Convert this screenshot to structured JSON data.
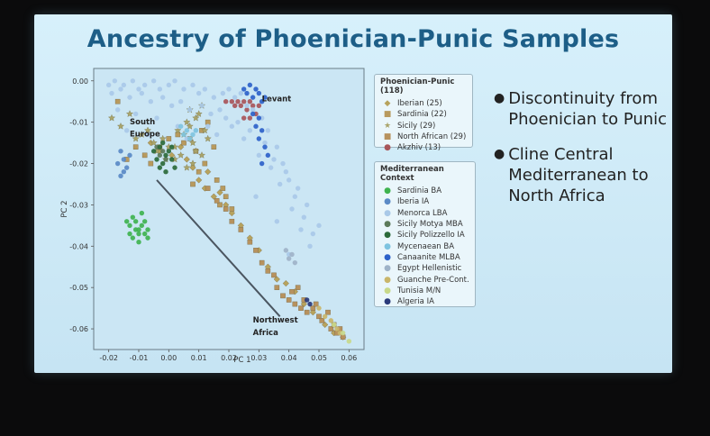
{
  "slide": {
    "title": "Ancestry of Phoenician-Punic Samples",
    "bullets": [
      "Discontinuity from Phoenician to Punic",
      "Cline Central Mediterranean to North Africa"
    ]
  },
  "chart_data": {
    "type": "scatter",
    "xlabel": "PC 1",
    "ylabel": "PC 2",
    "xlim": [
      -0.025,
      0.065
    ],
    "ylim": [
      -0.065,
      0.003
    ],
    "xticks": [
      -0.02,
      -0.01,
      0.0,
      0.01,
      0.02,
      0.03,
      0.04,
      0.05,
      0.06
    ],
    "yticks": [
      0.0,
      -0.01,
      -0.02,
      -0.03,
      -0.04,
      -0.05,
      -0.06
    ],
    "xtick_labels": [
      "-0.02",
      "-0.01",
      "0.00",
      "0.01",
      "0.02",
      "0.03",
      "0.04",
      "0.05",
      "0.06"
    ],
    "ytick_labels": [
      "0.00",
      "-0.01",
      "-0.02",
      "-0.03",
      "-0.04",
      "-0.05",
      "-0.06"
    ],
    "region_labels": [
      {
        "text": "Levant",
        "x": 0.031,
        "y": -0.005
      },
      {
        "text": "South",
        "x": -0.013,
        "y": -0.0105
      },
      {
        "text": "Europe",
        "x": -0.013,
        "y": -0.0135
      },
      {
        "text": "Northwest",
        "x": 0.028,
        "y": -0.0585
      },
      {
        "text": "Africa",
        "x": 0.028,
        "y": -0.0615
      }
    ],
    "cline_line": {
      "x": [
        -0.004,
        0.037
      ],
      "y": [
        -0.024,
        -0.057
      ]
    },
    "legend_groups": [
      {
        "title": "Phoenician-Punic (118)",
        "entries": [
          {
            "label": "Iberian (25)",
            "marker": "◆",
            "color": "#b7a35d"
          },
          {
            "label": "Sardinia (22)",
            "marker": "■",
            "color": "#b89a5e"
          },
          {
            "label": "Sicily (29)",
            "marker": "★",
            "color": "#a9a46a"
          },
          {
            "label": "North African (29)",
            "marker": "■",
            "color": "#b7925e"
          },
          {
            "label": "Akzhiv (13)",
            "marker": "●",
            "color": "#a8565a"
          }
        ]
      },
      {
        "title": "Mediterranean Context",
        "entries": [
          {
            "label": "Sardinia BA",
            "marker": "●",
            "color": "#3fb34f"
          },
          {
            "label": "Iberia IA",
            "marker": "●",
            "color": "#5a8ac6"
          },
          {
            "label": "Menorca LBA",
            "marker": "●",
            "color": "#a9c9e8"
          },
          {
            "label": "Sicily Motya MBA",
            "marker": "●",
            "color": "#5c7a5a"
          },
          {
            "label": "Sicily Polizzello IA",
            "marker": "●",
            "color": "#2b6a3a"
          },
          {
            "label": "Mycenaean BA",
            "marker": "●",
            "color": "#7fc4e0"
          },
          {
            "label": "Canaanite MLBA",
            "marker": "●",
            "color": "#2e62c9"
          },
          {
            "label": "Egypt Hellenistic",
            "marker": "●",
            "color": "#9fb3c8"
          },
          {
            "label": "Guanche Pre-Cont.",
            "marker": "●",
            "color": "#c9b66a"
          },
          {
            "label": "Tunisia M/N",
            "marker": "●",
            "color": "#c8d98a"
          },
          {
            "label": "Algeria IA",
            "marker": "●",
            "color": "#2a3a7a"
          }
        ]
      }
    ],
    "series": [
      {
        "name": "Iberian (25)",
        "marker": "diamond",
        "color": "#b7a35d",
        "x": [
          -0.006,
          -0.003,
          0.001,
          0.004,
          0.006,
          0.008,
          0.01,
          0.012,
          0.013,
          0.015,
          0.017,
          0.019,
          0.021,
          0.024,
          0.027,
          0.03,
          0.033,
          0.036,
          0.039,
          0.042,
          0.045,
          0.048,
          0.052,
          0.055,
          0.058
        ],
        "y": [
          -0.015,
          -0.017,
          -0.018,
          -0.016,
          -0.019,
          -0.021,
          -0.024,
          -0.026,
          -0.022,
          -0.028,
          -0.027,
          -0.03,
          -0.032,
          -0.035,
          -0.038,
          -0.041,
          -0.045,
          -0.048,
          -0.049,
          -0.051,
          -0.054,
          -0.056,
          -0.059,
          -0.061,
          -0.062
        ]
      },
      {
        "name": "Sardinia (22)",
        "marker": "square",
        "color": "#b89a5e",
        "x": [
          -0.017,
          -0.014,
          -0.011,
          -0.008,
          -0.006,
          -0.003,
          0.0,
          0.003,
          0.005,
          0.007,
          0.009,
          0.011,
          0.013,
          0.015,
          0.016,
          0.018,
          0.019,
          0.021,
          0.01,
          0.008,
          0.012,
          0.017
        ],
        "y": [
          -0.005,
          -0.019,
          -0.016,
          -0.018,
          -0.02,
          -0.016,
          -0.014,
          -0.013,
          -0.015,
          -0.014,
          -0.017,
          -0.012,
          -0.01,
          -0.016,
          -0.024,
          -0.026,
          -0.028,
          -0.031,
          -0.022,
          -0.025,
          -0.02,
          -0.03
        ]
      },
      {
        "name": "Sicily (29)",
        "marker": "star",
        "color": "#a9a46a",
        "x": [
          -0.019,
          -0.016,
          -0.013,
          -0.011,
          -0.009,
          -0.007,
          -0.005,
          -0.004,
          -0.002,
          0.0,
          0.002,
          0.003,
          0.005,
          0.006,
          0.007,
          0.008,
          0.009,
          0.01,
          0.011,
          0.012,
          0.013,
          0.008,
          0.006,
          0.004,
          0.002,
          -0.001,
          0.009,
          0.011,
          0.007
        ],
        "y": [
          -0.009,
          -0.011,
          -0.008,
          -0.014,
          -0.013,
          -0.012,
          -0.015,
          -0.017,
          -0.014,
          -0.016,
          -0.019,
          -0.012,
          -0.013,
          -0.01,
          -0.011,
          -0.015,
          -0.017,
          -0.008,
          -0.006,
          -0.012,
          -0.014,
          -0.02,
          -0.021,
          -0.018,
          -0.016,
          -0.019,
          -0.009,
          -0.018,
          -0.007
        ]
      },
      {
        "name": "North African (29)",
        "marker": "square",
        "color": "#b7925e",
        "x": [
          0.013,
          0.016,
          0.019,
          0.021,
          0.024,
          0.027,
          0.029,
          0.031,
          0.033,
          0.035,
          0.036,
          0.038,
          0.04,
          0.041,
          0.042,
          0.044,
          0.045,
          0.046,
          0.048,
          0.05,
          0.051,
          0.053,
          0.054,
          0.055,
          0.056,
          0.057,
          0.058,
          0.043,
          0.049
        ],
        "y": [
          -0.026,
          -0.029,
          -0.031,
          -0.034,
          -0.036,
          -0.039,
          -0.041,
          -0.044,
          -0.046,
          -0.047,
          -0.05,
          -0.052,
          -0.053,
          -0.051,
          -0.054,
          -0.055,
          -0.053,
          -0.056,
          -0.055,
          -0.057,
          -0.058,
          -0.056,
          -0.06,
          -0.059,
          -0.061,
          -0.06,
          -0.062,
          -0.05,
          -0.054
        ]
      },
      {
        "name": "Akzhiv (13)",
        "marker": "circle",
        "color": "#a8565a",
        "x": [
          0.019,
          0.021,
          0.022,
          0.023,
          0.024,
          0.025,
          0.026,
          0.027,
          0.028,
          0.029,
          0.03,
          0.025,
          0.027
        ],
        "y": [
          -0.005,
          -0.005,
          -0.006,
          -0.005,
          -0.006,
          -0.005,
          -0.007,
          -0.005,
          -0.006,
          -0.008,
          -0.006,
          -0.009,
          -0.009
        ]
      },
      {
        "name": "Sardinia BA",
        "marker": "circle",
        "color": "#3fb34f",
        "x": [
          -0.014,
          -0.013,
          -0.012,
          -0.011,
          -0.01,
          -0.009,
          -0.008,
          -0.007,
          -0.012,
          -0.01,
          -0.008,
          -0.011,
          -0.009,
          -0.013,
          -0.007,
          -0.01
        ],
        "y": [
          -0.034,
          -0.035,
          -0.033,
          -0.036,
          -0.037,
          -0.035,
          -0.034,
          -0.036,
          -0.038,
          -0.039,
          -0.037,
          -0.034,
          -0.032,
          -0.037,
          -0.038,
          -0.036
        ]
      },
      {
        "name": "Iberia IA",
        "marker": "circle",
        "color": "#5a8ac6",
        "x": [
          -0.016,
          -0.015,
          -0.014,
          -0.017,
          -0.015,
          -0.013,
          -0.016
        ],
        "y": [
          -0.017,
          -0.019,
          -0.021,
          -0.02,
          -0.022,
          -0.018,
          -0.023
        ]
      },
      {
        "name": "Menorca LBA",
        "marker": "circle",
        "color": "#a9c9e8",
        "x": [
          -0.02,
          -0.018,
          -0.015,
          -0.012,
          -0.01,
          -0.008,
          -0.005,
          -0.003,
          0.0,
          0.002,
          0.005,
          0.008,
          0.01,
          0.012,
          0.015,
          0.018,
          0.02,
          0.022,
          0.024,
          0.026,
          0.028,
          0.031,
          0.033,
          0.036,
          0.038,
          0.04,
          0.042,
          0.045,
          0.048,
          -0.019,
          -0.016,
          -0.013,
          -0.009,
          -0.006,
          -0.002,
          0.001,
          0.004,
          0.007,
          0.011,
          0.014,
          0.017,
          0.019,
          0.023,
          0.027,
          0.032,
          0.035,
          0.039,
          0.043,
          0.046,
          0.05,
          0.037,
          0.041,
          0.044,
          0.047,
          0.034,
          0.03,
          0.025,
          0.021,
          -0.017,
          -0.011,
          -0.004,
          0.003,
          0.009,
          0.016,
          -0.014,
          -0.007,
          0.006,
          0.013,
          0.029,
          0.036,
          0.04
        ],
        "y": [
          -0.001,
          0.0,
          -0.001,
          0.0,
          -0.002,
          -0.001,
          0.0,
          -0.002,
          -0.001,
          0.0,
          -0.002,
          -0.001,
          -0.003,
          -0.002,
          -0.004,
          -0.003,
          -0.002,
          -0.004,
          -0.003,
          -0.006,
          -0.007,
          -0.009,
          -0.012,
          -0.016,
          -0.02,
          -0.024,
          -0.028,
          -0.033,
          -0.037,
          -0.003,
          -0.002,
          -0.004,
          -0.003,
          -0.005,
          -0.004,
          -0.006,
          -0.005,
          -0.007,
          -0.006,
          -0.008,
          -0.007,
          -0.009,
          -0.01,
          -0.012,
          -0.015,
          -0.019,
          -0.022,
          -0.026,
          -0.03,
          -0.035,
          -0.025,
          -0.031,
          -0.036,
          -0.04,
          -0.021,
          -0.018,
          -0.014,
          -0.011,
          -0.007,
          -0.008,
          -0.009,
          -0.011,
          -0.012,
          -0.013,
          -0.012,
          -0.013,
          -0.014,
          -0.011,
          -0.028,
          -0.034,
          -0.042
        ]
      },
      {
        "name": "Sicily Motya MBA",
        "marker": "circle",
        "color": "#5c7a5a",
        "x": [
          -0.004,
          -0.003,
          -0.002,
          -0.001
        ],
        "y": [
          -0.016,
          -0.018,
          -0.017,
          -0.019
        ]
      },
      {
        "name": "Sicily Polizzello IA",
        "marker": "circle",
        "color": "#2b6a3a",
        "x": [
          -0.005,
          -0.004,
          -0.003,
          -0.002,
          -0.001,
          0.0,
          0.001,
          0.002,
          -0.003,
          -0.001,
          0.001,
          -0.002
        ],
        "y": [
          -0.017,
          -0.019,
          -0.016,
          -0.02,
          -0.018,
          -0.017,
          -0.019,
          -0.021,
          -0.021,
          -0.022,
          -0.016,
          -0.015
        ]
      },
      {
        "name": "Mycenaean BA",
        "marker": "circle",
        "color": "#7fc4e0",
        "x": [
          0.004,
          0.005,
          0.006,
          0.007,
          0.008,
          0.009
        ],
        "y": [
          -0.011,
          -0.013,
          -0.012,
          -0.014,
          -0.013,
          -0.012
        ]
      },
      {
        "name": "Canaanite MLBA",
        "marker": "circle",
        "color": "#2e62c9",
        "x": [
          0.025,
          0.026,
          0.027,
          0.028,
          0.029,
          0.03,
          0.031,
          0.032,
          0.028,
          0.03,
          0.029,
          0.031,
          0.03,
          0.032,
          0.033,
          0.031
        ],
        "y": [
          -0.002,
          -0.003,
          -0.001,
          -0.004,
          -0.002,
          -0.003,
          -0.005,
          -0.004,
          -0.008,
          -0.009,
          -0.011,
          -0.012,
          -0.014,
          -0.016,
          -0.018,
          -0.02
        ]
      },
      {
        "name": "Egypt Hellenistic",
        "marker": "circle",
        "color": "#9fb3c8",
        "x": [
          0.039,
          0.04,
          0.041,
          0.042
        ],
        "y": [
          -0.041,
          -0.043,
          -0.042,
          -0.044
        ]
      },
      {
        "name": "Guanche Pre-Cont.",
        "marker": "circle",
        "color": "#c9b66a",
        "x": [
          0.05,
          0.052,
          0.054,
          0.056,
          0.057
        ],
        "y": [
          -0.055,
          -0.057,
          -0.058,
          -0.06,
          -0.061
        ]
      },
      {
        "name": "Tunisia M/N",
        "marker": "circle",
        "color": "#c8d98a",
        "x": [
          0.055,
          0.058,
          0.06
        ],
        "y": [
          -0.059,
          -0.061,
          -0.063
        ]
      },
      {
        "name": "Algeria IA",
        "marker": "circle",
        "color": "#2a3a7a",
        "x": [
          0.046,
          0.047
        ],
        "y": [
          -0.053,
          -0.054
        ]
      }
    ]
  }
}
